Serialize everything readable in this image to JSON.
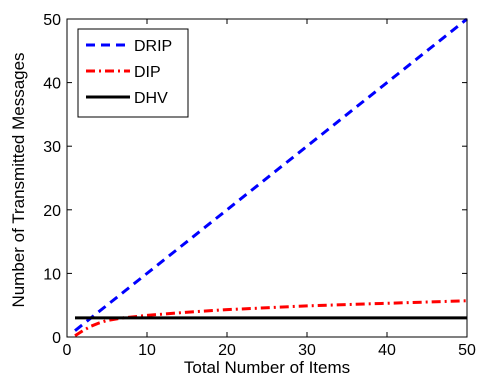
{
  "chart_data": {
    "type": "line",
    "title": "",
    "xlabel": "Total Number of Items",
    "ylabel": "Number of Transmitted Messages",
    "xlim": [
      0,
      50
    ],
    "ylim": [
      0,
      50
    ],
    "xticks": [
      "0",
      "10",
      "20",
      "30",
      "40",
      "50"
    ],
    "yticks": [
      "0",
      "10",
      "20",
      "30",
      "40",
      "50"
    ],
    "grid": false,
    "legend_position": "top-left",
    "series": [
      {
        "name": "DRIP",
        "color": "#0000ff",
        "style": "dashed",
        "x": [
          1,
          50
        ],
        "y": [
          1,
          50
        ]
      },
      {
        "name": "DIP",
        "color": "#ff0000",
        "style": "dashdot",
        "x": [
          1,
          2,
          3,
          4,
          5,
          7,
          10,
          15,
          20,
          25,
          30,
          35,
          40,
          45,
          50
        ],
        "y": [
          0.2,
          1.0,
          1.7,
          2.2,
          2.6,
          3.0,
          3.4,
          3.9,
          4.3,
          4.6,
          4.9,
          5.1,
          5.3,
          5.5,
          5.7
        ]
      },
      {
        "name": "DHV",
        "color": "#000000",
        "style": "solid",
        "x": [
          1,
          50
        ],
        "y": [
          3,
          3
        ]
      }
    ]
  }
}
